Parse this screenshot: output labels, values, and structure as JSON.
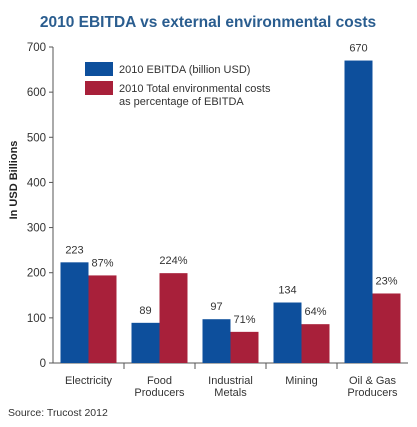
{
  "chart_data": {
    "type": "bar",
    "title": "2010 EBITDA vs external environmental costs",
    "ylabel": "In USD Billions",
    "xlabel": "",
    "ylim": [
      0,
      700
    ],
    "yticks": [
      0,
      100,
      200,
      300,
      400,
      500,
      600,
      700
    ],
    "grid": false,
    "legend_position": "top-left",
    "categories": [
      [
        "Electricity"
      ],
      [
        "Food",
        "Producers"
      ],
      [
        "Industrial",
        "Metals"
      ],
      [
        "Mining"
      ],
      [
        "Oil & Gas",
        "Producers"
      ]
    ],
    "series": [
      {
        "name": "2010 EBITDA (billion USD)",
        "color": "#0d4f9c",
        "values": [
          223,
          89,
          97,
          134,
          670
        ],
        "labels": [
          "223",
          "89",
          "97",
          "134",
          "670"
        ]
      },
      {
        "name": [
          "2010 Total environmental costs",
          "as percentage of EBITDA"
        ],
        "color": "#a8203a",
        "values": [
          194,
          199,
          69,
          86,
          154
        ],
        "labels": [
          "87%",
          "224%",
          "71%",
          "64%",
          "23%"
        ]
      }
    ],
    "source": "Source: Trucost 2012"
  }
}
